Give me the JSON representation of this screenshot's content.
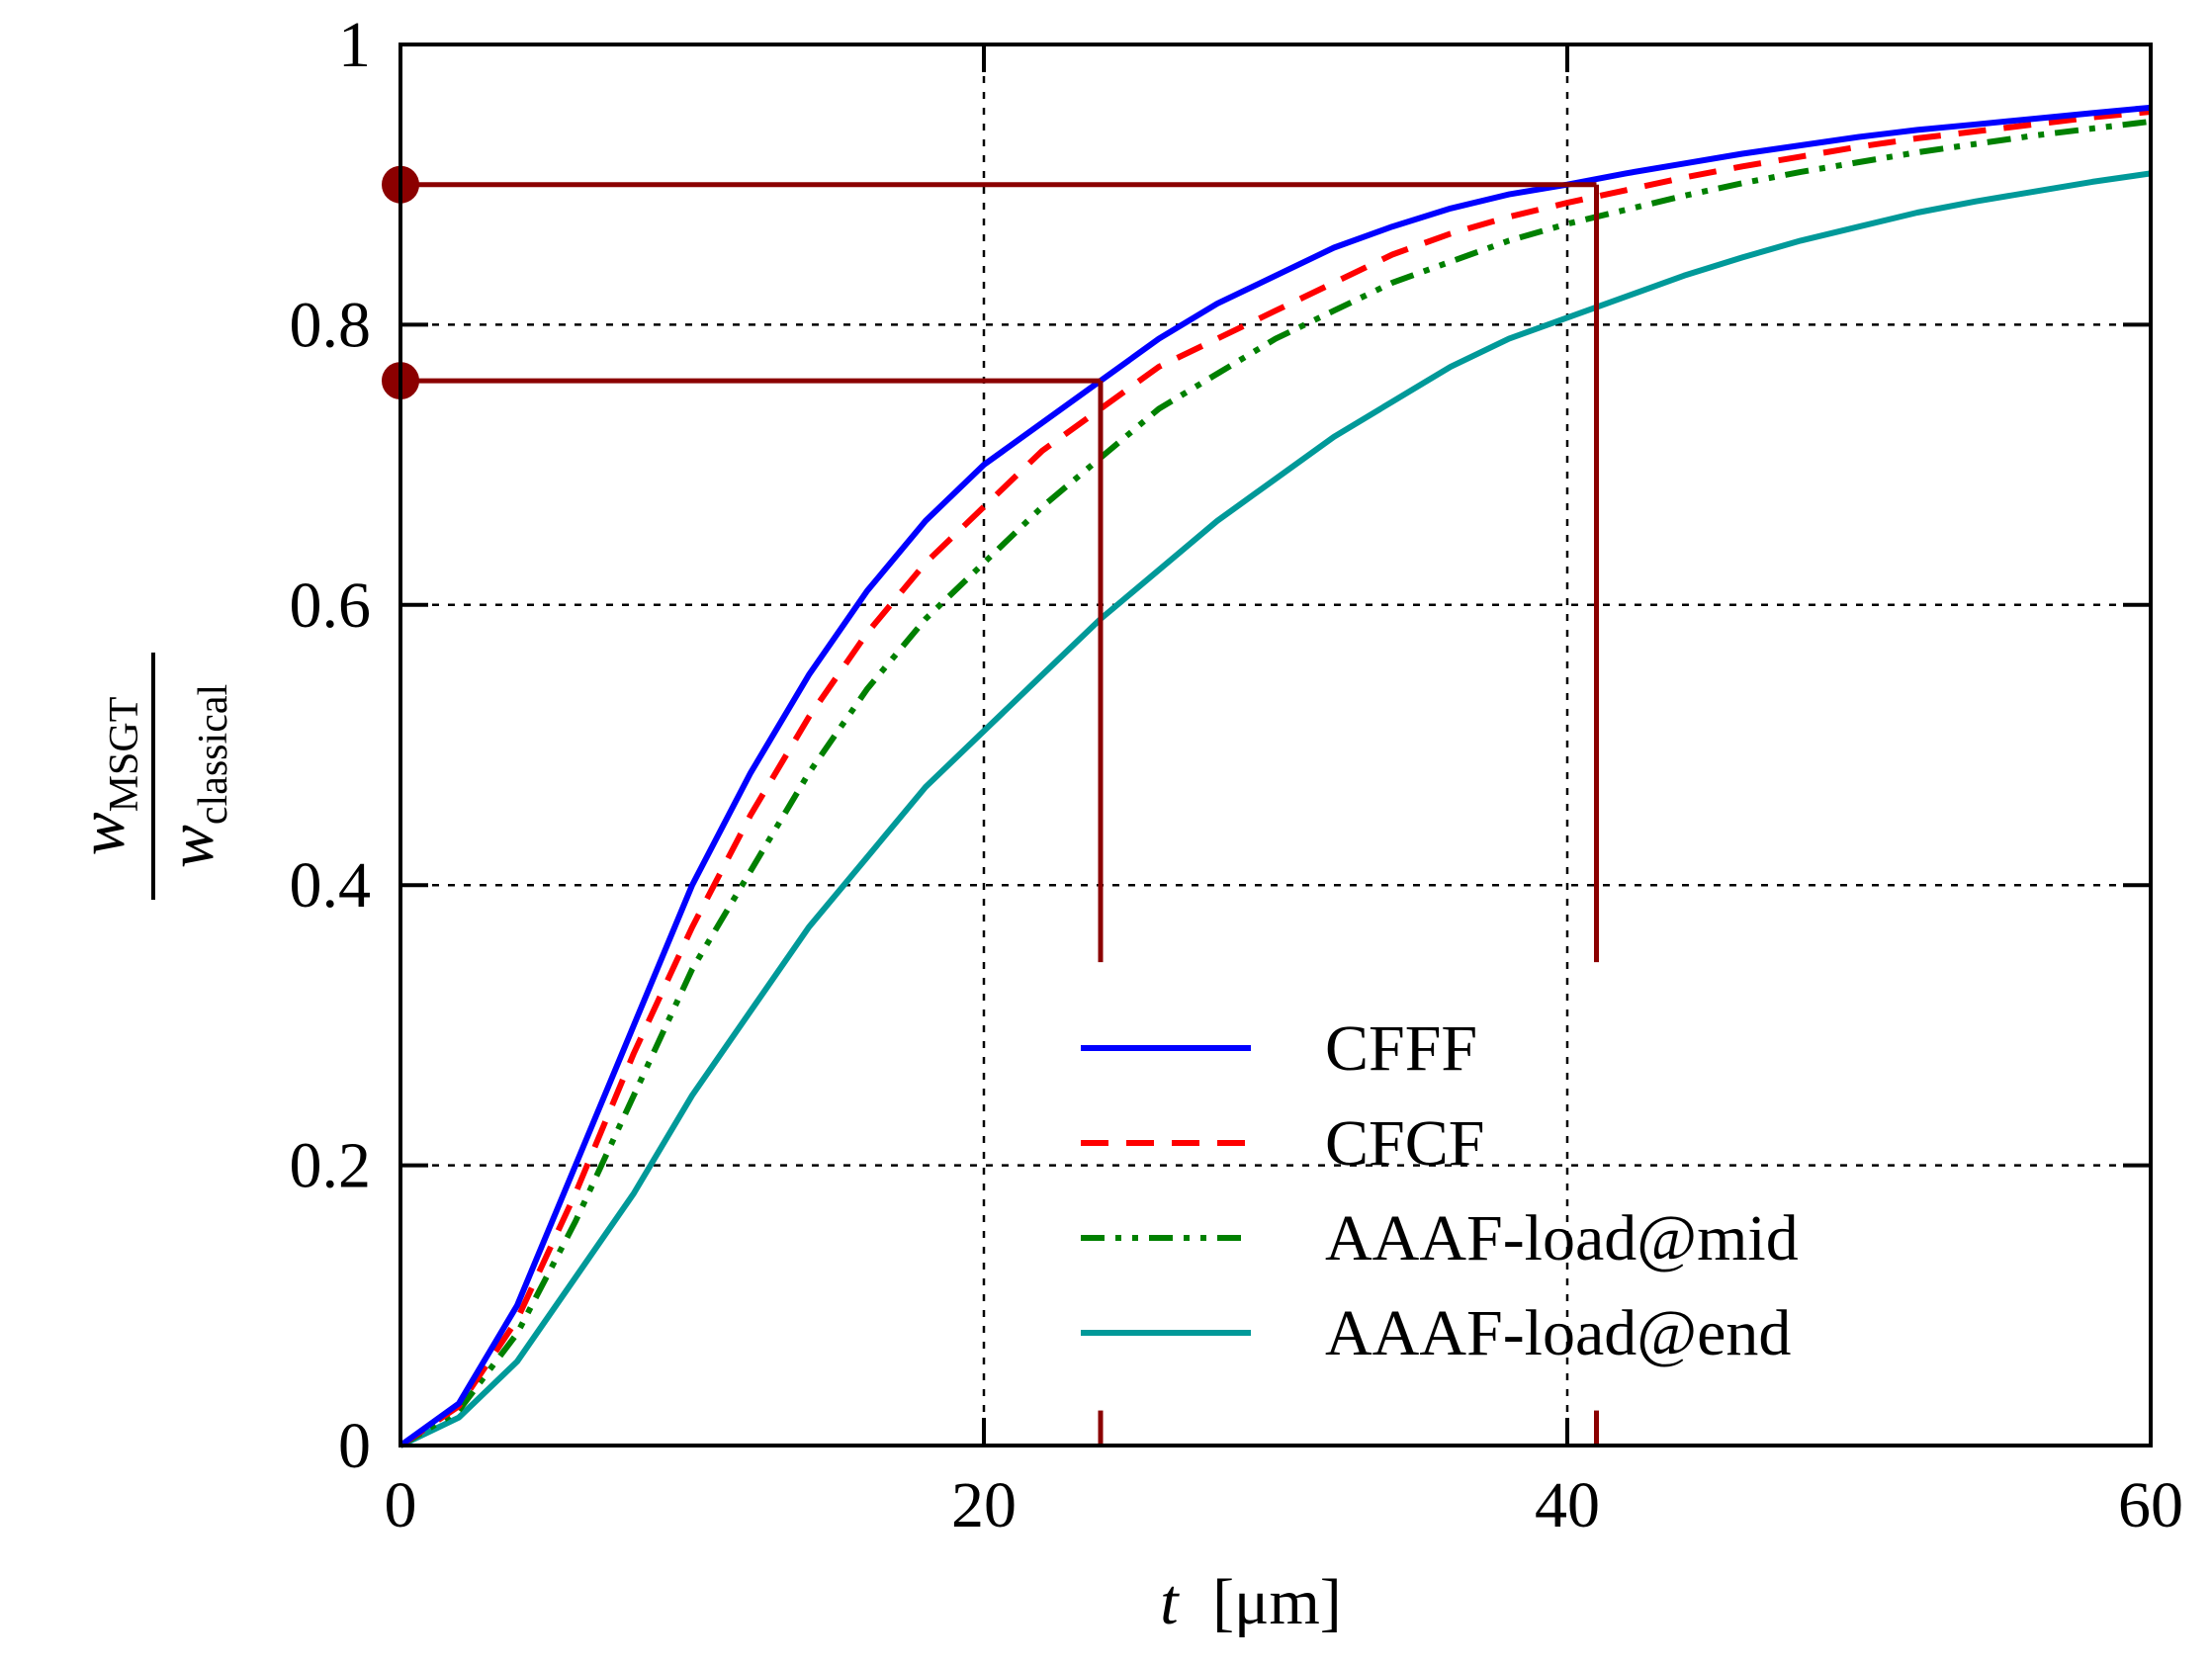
{
  "chart_data": {
    "type": "line",
    "xlabel": {
      "var": "t",
      "unit": "[μm]"
    },
    "ylabel": {
      "numerator": "w",
      "numerator_sub": "MSGT",
      "denominator": "w",
      "denominator_sub": "classical"
    },
    "xlim": [
      0,
      60
    ],
    "ylim": [
      0,
      1
    ],
    "xticks": [
      0,
      20,
      40,
      60
    ],
    "xtick_labels": [
      "0",
      "20",
      "40",
      "60"
    ],
    "yticks": [
      0,
      0.2,
      0.4,
      0.6,
      0.8,
      1
    ],
    "ytick_labels": [
      "0",
      "0.2",
      "0.4",
      "0.6",
      "0.8",
      "1"
    ],
    "grid": true,
    "legend_position": "bottom-right",
    "series": [
      {
        "name": "CFFF",
        "color": "#0000ff",
        "style": "solid",
        "x": [
          0,
          2,
          4,
          6,
          8,
          10,
          12,
          14,
          16,
          18,
          20,
          22,
          24,
          26,
          28,
          30,
          32,
          34,
          36,
          38,
          40,
          42,
          44,
          46,
          48,
          50,
          52,
          54,
          56,
          58,
          60
        ],
        "y": [
          0,
          0.03,
          0.1,
          0.2,
          0.3,
          0.4,
          0.48,
          0.55,
          0.61,
          0.66,
          0.7,
          0.73,
          0.76,
          0.79,
          0.815,
          0.835,
          0.855,
          0.87,
          0.883,
          0.893,
          0.9,
          0.908,
          0.915,
          0.922,
          0.928,
          0.934,
          0.939,
          0.943,
          0.947,
          0.951,
          0.955
        ]
      },
      {
        "name": "CFCF",
        "color": "#ff0000",
        "style": "dashed",
        "x": [
          0,
          2,
          4,
          6,
          8,
          10,
          12,
          14,
          16,
          18,
          20,
          22,
          24,
          26,
          28,
          30,
          32,
          34,
          36,
          38,
          40,
          42,
          44,
          46,
          48,
          50,
          52,
          54,
          56,
          58,
          60
        ],
        "y": [
          0,
          0.028,
          0.09,
          0.18,
          0.28,
          0.37,
          0.45,
          0.52,
          0.58,
          0.63,
          0.67,
          0.71,
          0.74,
          0.77,
          0.79,
          0.81,
          0.83,
          0.85,
          0.865,
          0.877,
          0.887,
          0.896,
          0.905,
          0.913,
          0.92,
          0.927,
          0.933,
          0.938,
          0.943,
          0.948,
          0.952
        ]
      },
      {
        "name": "AAAF-load@mid",
        "color": "#008000",
        "style": "dashdotdot",
        "x": [
          0,
          2,
          4,
          6,
          8,
          10,
          12,
          14,
          16,
          18,
          20,
          22,
          24,
          26,
          28,
          30,
          32,
          34,
          36,
          38,
          40,
          42,
          44,
          46,
          48,
          50,
          52,
          54,
          56,
          58,
          60
        ],
        "y": [
          0,
          0.025,
          0.08,
          0.16,
          0.25,
          0.34,
          0.41,
          0.48,
          0.54,
          0.59,
          0.63,
          0.67,
          0.705,
          0.74,
          0.765,
          0.79,
          0.81,
          0.83,
          0.845,
          0.86,
          0.872,
          0.882,
          0.892,
          0.901,
          0.909,
          0.916,
          0.923,
          0.929,
          0.935,
          0.94,
          0.945
        ]
      },
      {
        "name": "AAAF-load@end",
        "color": "#009999",
        "style": "solid",
        "x": [
          0,
          2,
          4,
          6,
          8,
          10,
          12,
          14,
          16,
          18,
          20,
          22,
          24,
          26,
          28,
          30,
          32,
          34,
          36,
          38,
          40,
          42,
          44,
          46,
          48,
          50,
          52,
          54,
          56,
          58,
          60
        ],
        "y": [
          0,
          0.02,
          0.06,
          0.12,
          0.18,
          0.25,
          0.31,
          0.37,
          0.42,
          0.47,
          0.51,
          0.55,
          0.59,
          0.625,
          0.66,
          0.69,
          0.72,
          0.745,
          0.77,
          0.79,
          0.805,
          0.82,
          0.835,
          0.848,
          0.86,
          0.87,
          0.88,
          0.888,
          0.895,
          0.902,
          0.908
        ]
      }
    ],
    "annotations": {
      "color": "#8b0000",
      "markers": [
        {
          "x": 24,
          "y": 0.76
        },
        {
          "x": 41,
          "y": 0.9
        }
      ],
      "vertical_line_y_top": 0.345,
      "vertical_tick_y_range": [
        0,
        0.025
      ]
    }
  }
}
